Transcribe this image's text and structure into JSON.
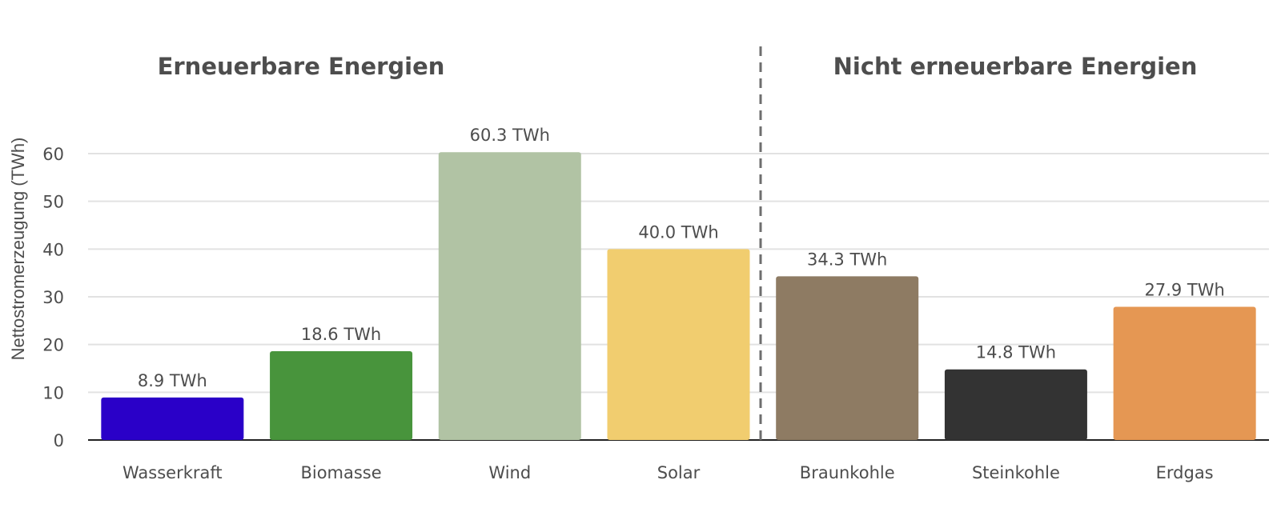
{
  "chart_data": {
    "type": "bar",
    "categories": [
      "Wasserkraft",
      "Biomasse",
      "Wind",
      "Solar",
      "Braunkohle",
      "Steinkohle",
      "Erdgas"
    ],
    "values": [
      8.9,
      18.6,
      60.3,
      40.0,
      34.3,
      14.8,
      27.9
    ],
    "data_labels": [
      "8.9 TWh",
      "18.6 TWh",
      "60.3 TWh",
      "40.0 TWh",
      "34.3 TWh",
      "14.8 TWh",
      "27.9 TWh"
    ],
    "colors": [
      "#2a00c8",
      "#48943c",
      "#b1c3a4",
      "#f1cd6f",
      "#8e7b63",
      "#333333",
      "#e59753"
    ],
    "ylabel": "Nettostromerzeugung (TWh)",
    "xlabel": "",
    "ylim": [
      0,
      60
    ],
    "yticks": [
      0,
      10,
      20,
      30,
      40,
      50,
      60
    ],
    "grid": true,
    "groups": [
      {
        "title": "Erneuerbare Energien",
        "categories": [
          "Wasserkraft",
          "Biomasse",
          "Wind",
          "Solar"
        ]
      },
      {
        "title": "Nicht erneuerbare Energien",
        "categories": [
          "Braunkohle",
          "Steinkohle",
          "Erdgas"
        ]
      }
    ]
  }
}
